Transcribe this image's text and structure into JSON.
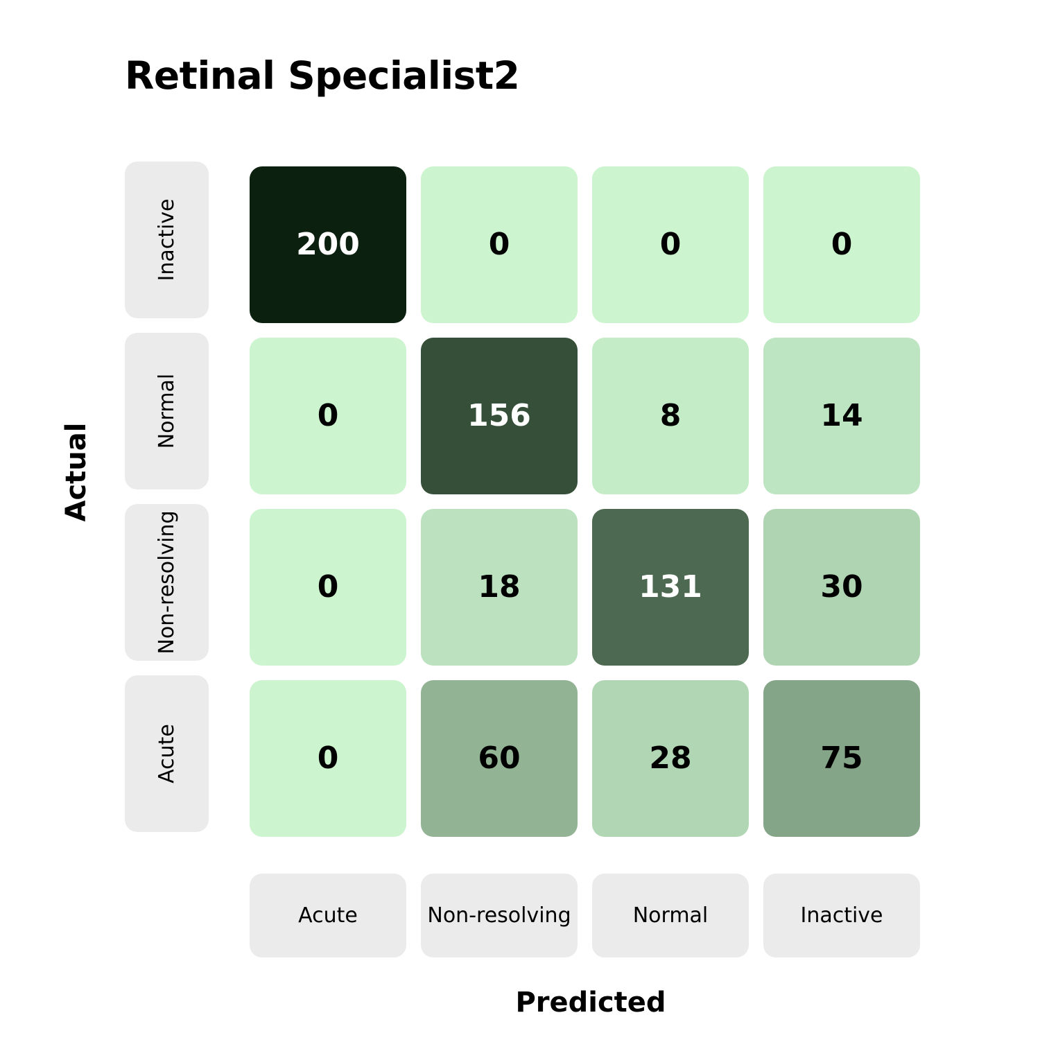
{
  "chart_data": {
    "type": "heatmap",
    "title": "Retinal Specialist2",
    "xlabel": "Predicted",
    "ylabel": "Actual",
    "x_categories": [
      "Acute",
      "Non-resolving",
      "Normal",
      "Inactive"
    ],
    "y_categories_top_to_bottom": [
      "Inactive",
      "Normal",
      "Non-resolving",
      "Acute"
    ],
    "matrix": [
      [
        200,
        0,
        0,
        0
      ],
      [
        0,
        156,
        8,
        14
      ],
      [
        0,
        18,
        131,
        30
      ],
      [
        0,
        60,
        28,
        75
      ]
    ],
    "grid": false
  },
  "colors": {
    "scale_low": "#ccf4cf",
    "scale_high": "#0b200e",
    "label_box": "#ebebeb",
    "text_dark": "#000000",
    "text_light": "#ffffff"
  }
}
